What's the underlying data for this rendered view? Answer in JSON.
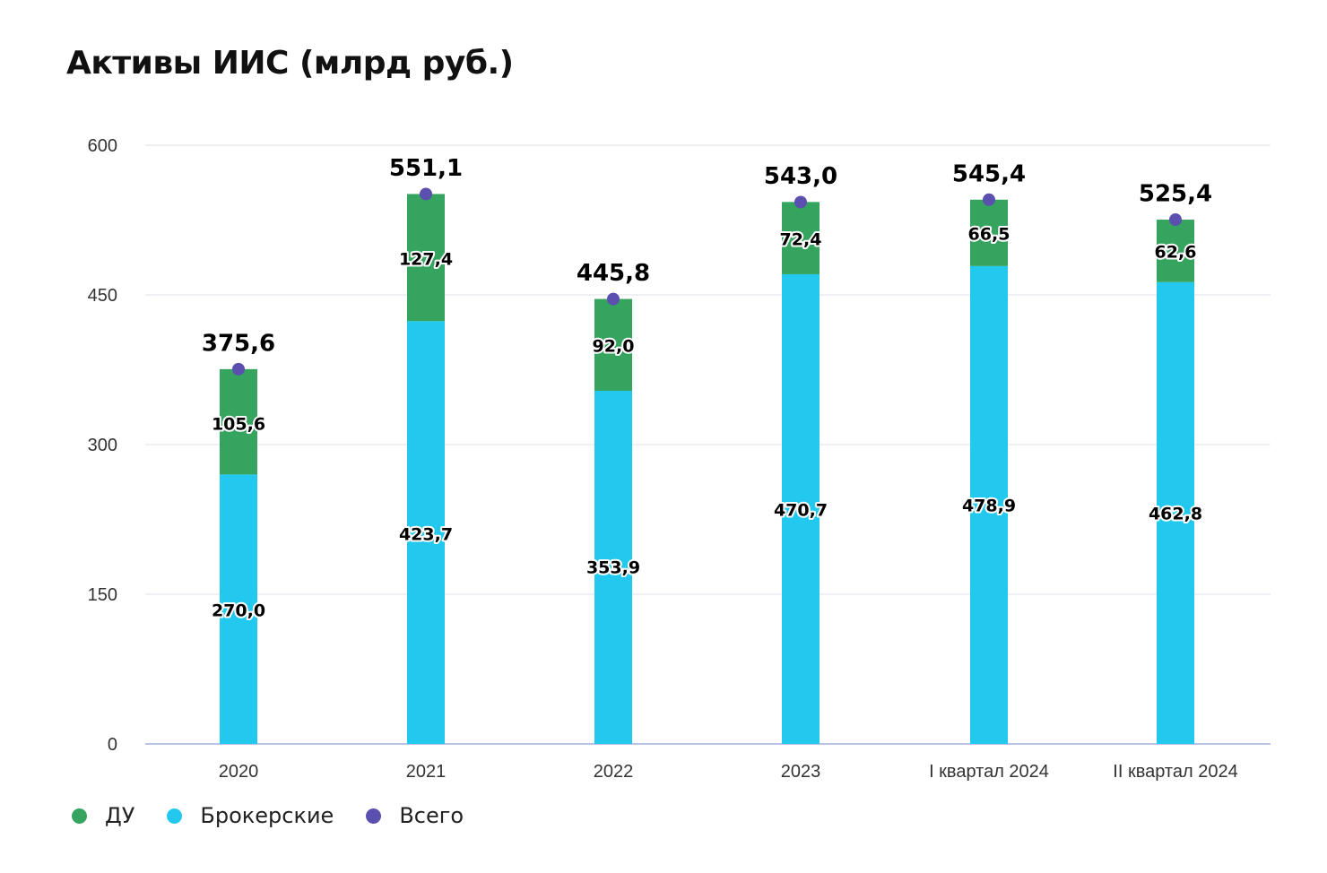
{
  "chart_data": {
    "type": "bar",
    "stacked": true,
    "title": "Активы ИИС (млрд руб.)",
    "categories": [
      "2020",
      "2021",
      "2022",
      "2023",
      "I квартал 2024",
      "II квартал 2024"
    ],
    "series": [
      {
        "name": "Брокерские",
        "color": "#22c8ee",
        "values": [
          270.0,
          423.7,
          353.9,
          470.7,
          478.9,
          462.8
        ],
        "labels": [
          "270,0",
          "423,7",
          "353,9",
          "470,7",
          "478,9",
          "462,8"
        ]
      },
      {
        "name": "ДУ",
        "color": "#34a45e",
        "values": [
          105.6,
          127.4,
          92.0,
          72.4,
          66.5,
          62.6
        ],
        "labels": [
          "105,6",
          "127,4",
          "92,0",
          "72,4",
          "66,5",
          "62,6"
        ]
      }
    ],
    "total": {
      "name": "Всего",
      "color": "#5b4fb0",
      "values": [
        375.6,
        551.1,
        445.8,
        543.0,
        545.4,
        525.4
      ],
      "labels": [
        "375,6",
        "551,1",
        "445,8",
        "543,0",
        "545,4",
        "525,4"
      ]
    },
    "ylim": [
      0,
      600
    ],
    "yticks": [
      0,
      150,
      300,
      450,
      600
    ],
    "grid": true,
    "legend_position": "bottom-left",
    "legend": [
      {
        "name": "ДУ",
        "color": "#34a45e"
      },
      {
        "name": "Брокерские",
        "color": "#22c8ee"
      },
      {
        "name": "Всего",
        "color": "#5b4fb0"
      }
    ]
  }
}
